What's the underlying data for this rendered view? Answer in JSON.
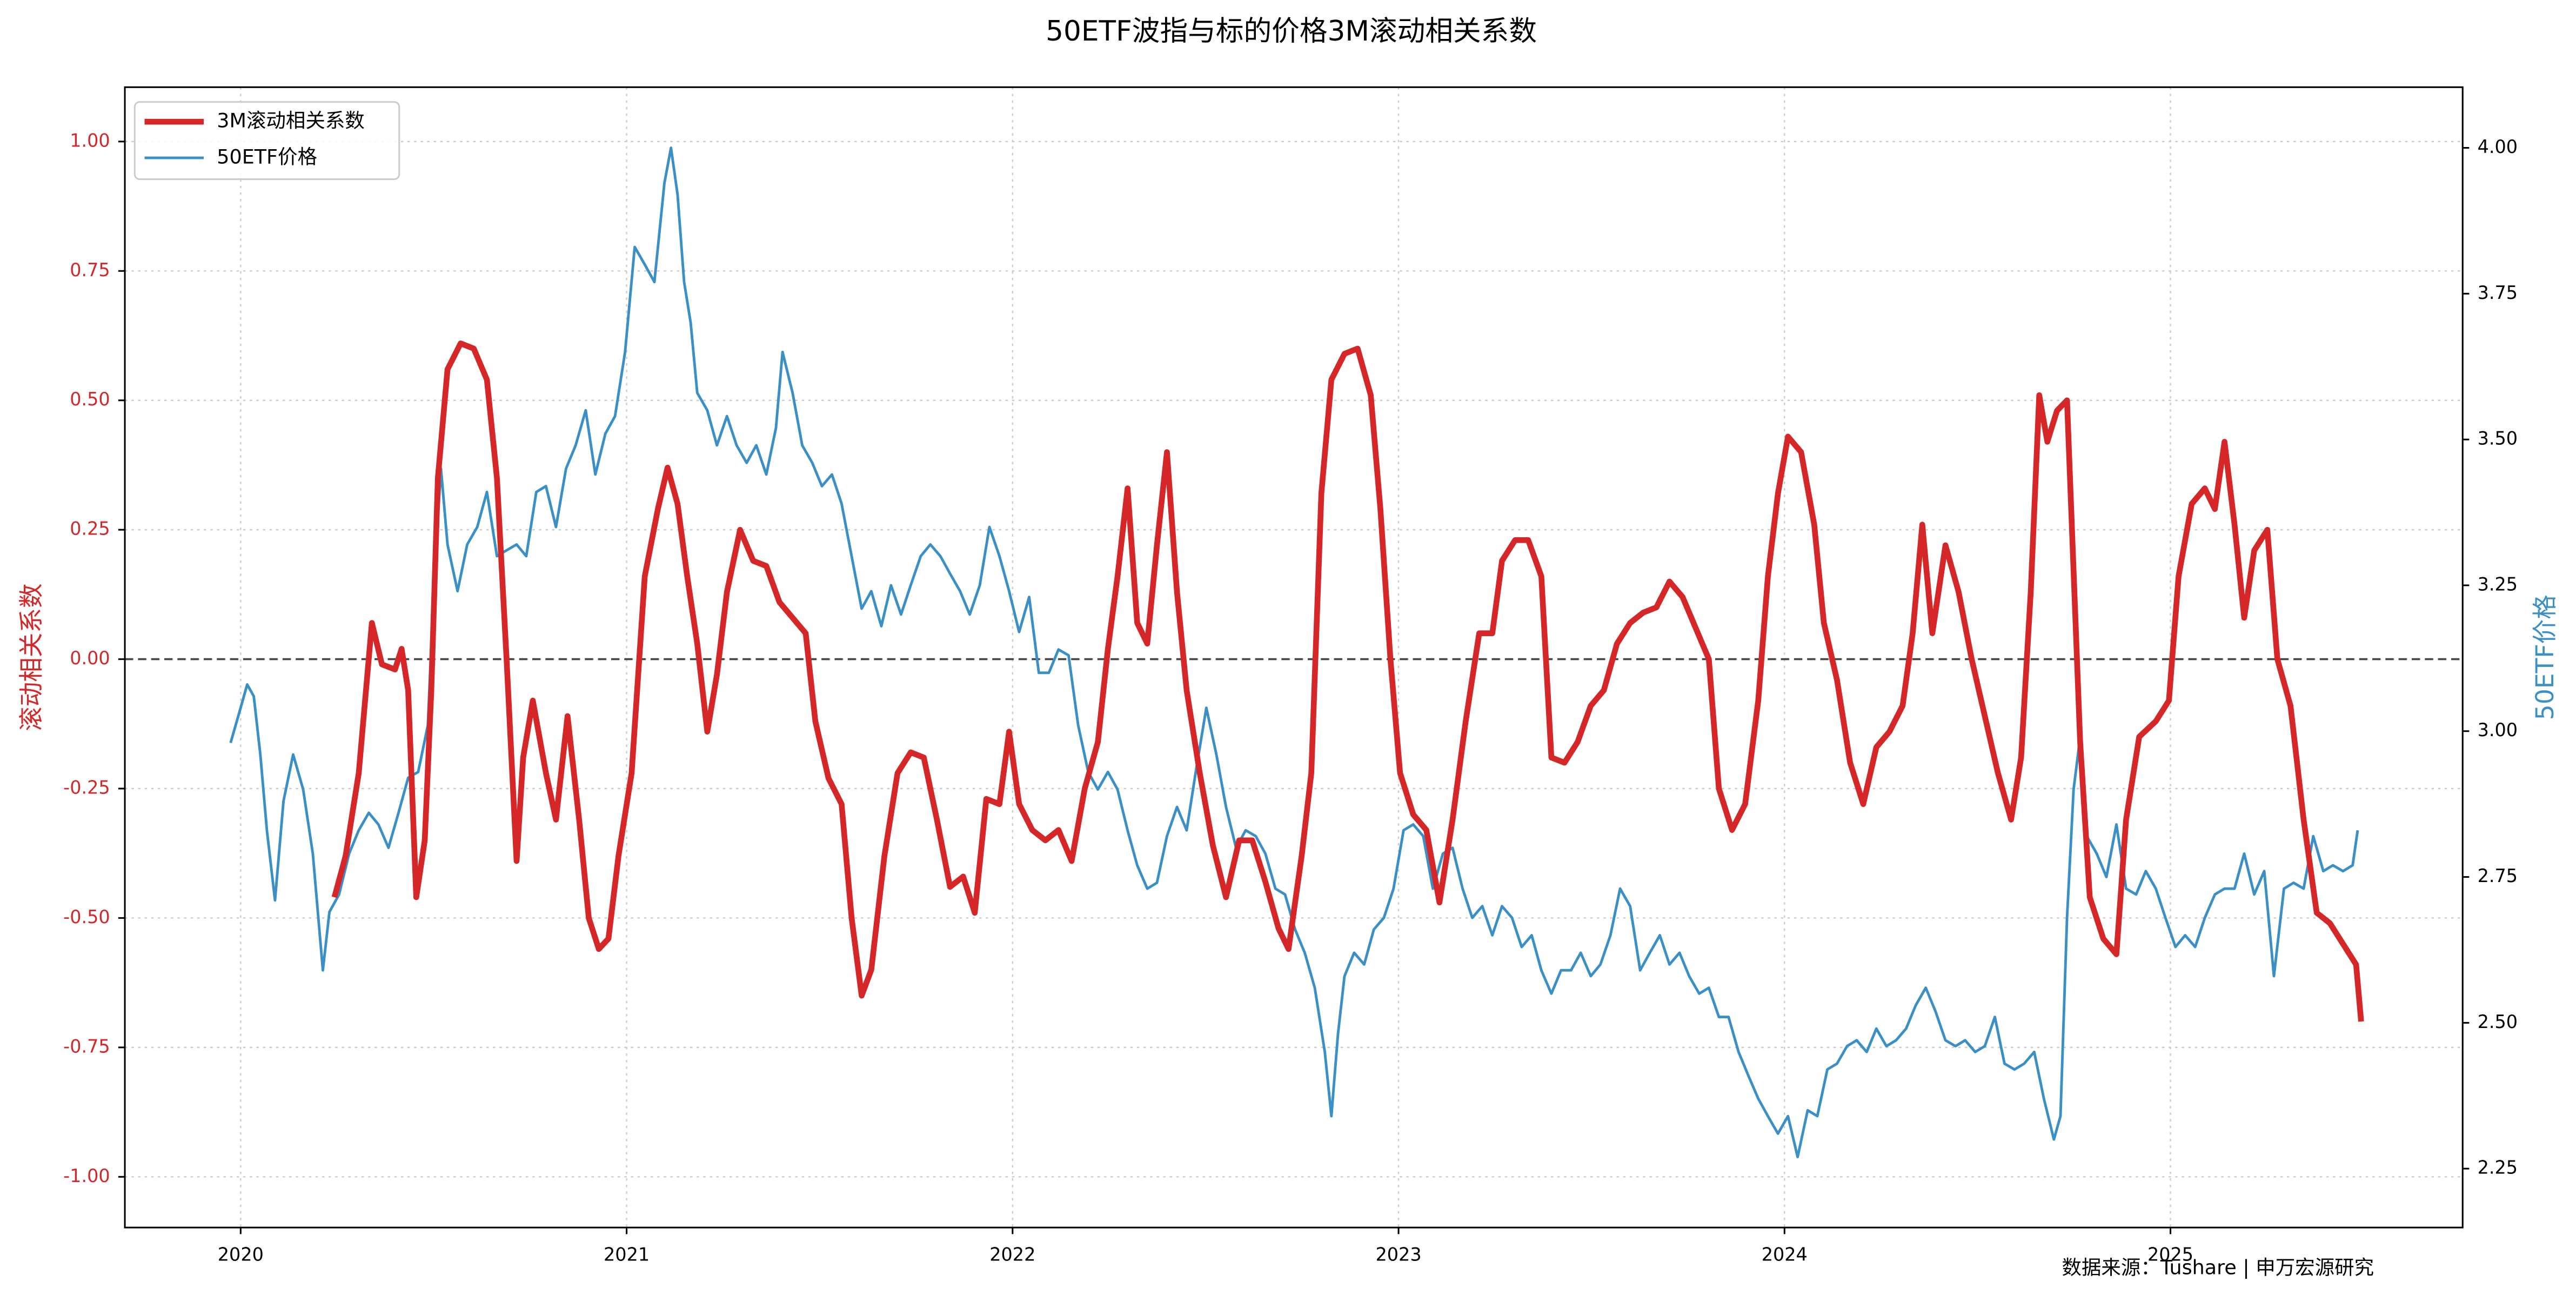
{
  "chart_data": {
    "type": "line",
    "title": "50ETF波指与标的价格3M滚动相关系数",
    "ylabel": "滚动相关系数",
    "y2label": "50ETF价格",
    "annotation": "数据来源：Tushare | 申万宏源研究",
    "xlim": [
      2019.7,
      2025.757
    ],
    "xticks": [
      2020,
      2021,
      2022,
      2023,
      2024,
      2025
    ],
    "ylim": [
      -1.098,
      1.105
    ],
    "yticks": [
      {
        "value": -1,
        "label": "-1.00"
      },
      {
        "value": -0.75,
        "label": "-0.75"
      },
      {
        "value": -0.5,
        "label": "-0.50"
      },
      {
        "value": -0.25,
        "label": "-0.25"
      },
      {
        "value": 0,
        "label": "0.00"
      },
      {
        "value": 0.25,
        "label": "0.25"
      },
      {
        "value": 0.5,
        "label": "0.50"
      },
      {
        "value": 0.75,
        "label": "0.75"
      },
      {
        "value": 1,
        "label": "1.00"
      }
    ],
    "y2lim": [
      2.149,
      4.104
    ],
    "y2ticks": [
      {
        "value": 2.25,
        "label": "2.25"
      },
      {
        "value": 2.5,
        "label": "2.50"
      },
      {
        "value": 2.75,
        "label": "2.75"
      },
      {
        "value": 3,
        "label": "3.00"
      },
      {
        "value": 3.25,
        "label": "3.25"
      },
      {
        "value": 3.5,
        "label": "3.50"
      },
      {
        "value": 3.75,
        "label": "3.75"
      },
      {
        "value": 4,
        "label": "4.00"
      }
    ],
    "hline": 0,
    "grid": true,
    "legend": "upper left",
    "series": [
      {
        "name": "3M滚动相关系数",
        "color": "#d62728",
        "axis": "y",
        "x": [
          2020.243,
          2020.272,
          2020.306,
          2020.34,
          2020.366,
          2020.4,
          2020.417,
          2020.434,
          2020.455,
          2020.477,
          2020.494,
          2020.511,
          2020.536,
          2020.57,
          2020.604,
          2020.638,
          2020.664,
          2020.689,
          2020.715,
          2020.732,
          2020.757,
          2020.791,
          2020.817,
          2020.847,
          2020.877,
          2020.902,
          2020.928,
          2020.953,
          2020.979,
          2021.013,
          2021.047,
          2021.081,
          2021.106,
          2021.132,
          2021.157,
          2021.183,
          2021.209,
          2021.234,
          2021.26,
          2021.294,
          2021.328,
          2021.362,
          2021.396,
          2021.43,
          2021.464,
          2021.489,
          2021.523,
          2021.557,
          2021.583,
          2021.609,
          2021.634,
          2021.668,
          2021.702,
          2021.736,
          2021.77,
          2021.804,
          2021.838,
          2021.872,
          2021.902,
          2021.932,
          2021.966,
          2021.991,
          2022.017,
          2022.051,
          2022.085,
          2022.119,
          2022.153,
          2022.187,
          2022.221,
          2022.247,
          2022.272,
          2022.298,
          2022.323,
          2022.349,
          2022.374,
          2022.4,
          2022.426,
          2022.451,
          2022.485,
          2022.519,
          2022.553,
          2022.587,
          2022.621,
          2022.655,
          2022.689,
          2022.715,
          2022.749,
          2022.774,
          2022.8,
          2022.826,
          2022.86,
          2022.894,
          2022.928,
          2022.953,
          2022.979,
          2023.004,
          2023.038,
          2023.072,
          2023.106,
          2023.14,
          2023.174,
          2023.209,
          2023.243,
          2023.268,
          2023.302,
          2023.336,
          2023.37,
          2023.396,
          2023.43,
          2023.464,
          2023.498,
          2023.532,
          2023.566,
          2023.6,
          2023.634,
          2023.668,
          2023.702,
          2023.736,
          2023.77,
          2023.804,
          2023.83,
          2023.864,
          2023.898,
          2023.932,
          2023.957,
          2023.983,
          2024.009,
          2024.043,
          2024.077,
          2024.102,
          2024.136,
          2024.17,
          2024.204,
          2024.238,
          2024.272,
          2024.306,
          2024.332,
          2024.357,
          2024.383,
          2024.417,
          2024.451,
          2024.485,
          2024.519,
          2024.553,
          2024.587,
          2024.613,
          2024.638,
          2024.66,
          2024.681,
          2024.706,
          2024.732,
          2024.766,
          2024.791,
          2024.826,
          2024.86,
          2024.885,
          2024.919,
          2024.962,
          2024.996,
          2025.021,
          2025.055,
          2025.089,
          2025.115,
          2025.14,
          2025.166,
          2025.191,
          2025.217,
          2025.251,
          2025.277,
          2025.311,
          2025.345,
          2025.379,
          2025.413,
          2025.447,
          2025.481,
          2025.494
        ],
        "values": [
          -0.46,
          -0.38,
          -0.22,
          0.07,
          -0.01,
          -0.02,
          0.02,
          -0.06,
          -0.46,
          -0.35,
          -0.06,
          0.35,
          0.56,
          0.61,
          0.6,
          0.54,
          0.35,
          0,
          -0.39,
          -0.19,
          -0.08,
          -0.22,
          -0.31,
          -0.11,
          -0.31,
          -0.5,
          -0.56,
          -0.54,
          -0.38,
          -0.22,
          0.16,
          0.29,
          0.37,
          0.3,
          0.16,
          0.03,
          -0.14,
          -0.03,
          0.13,
          0.25,
          0.19,
          0.18,
          0.11,
          0.08,
          0.05,
          -0.12,
          -0.23,
          -0.28,
          -0.5,
          -0.65,
          -0.6,
          -0.38,
          -0.22,
          -0.18,
          -0.19,
          -0.31,
          -0.44,
          -0.42,
          -0.49,
          -0.27,
          -0.28,
          -0.14,
          -0.28,
          -0.33,
          -0.35,
          -0.33,
          -0.39,
          -0.25,
          -0.16,
          0.02,
          0.16,
          0.33,
          0.07,
          0.03,
          0.22,
          0.4,
          0.13,
          -0.06,
          -0.22,
          -0.36,
          -0.46,
          -0.35,
          -0.35,
          -0.43,
          -0.52,
          -0.56,
          -0.38,
          -0.22,
          0.32,
          0.54,
          0.59,
          0.6,
          0.51,
          0.29,
          0,
          -0.22,
          -0.3,
          -0.33,
          -0.47,
          -0.31,
          -0.12,
          0.05,
          0.05,
          0.19,
          0.23,
          0.23,
          0.16,
          -0.19,
          -0.2,
          -0.16,
          -0.09,
          -0.06,
          0.03,
          0.07,
          0.09,
          0.1,
          0.15,
          0.12,
          0.06,
          0,
          -0.25,
          -0.33,
          -0.28,
          -0.08,
          0.16,
          0.32,
          0.43,
          0.4,
          0.26,
          0.07,
          -0.04,
          -0.2,
          -0.28,
          -0.17,
          -0.14,
          -0.09,
          0.05,
          0.26,
          0.05,
          0.22,
          0.13,
          0,
          -0.11,
          -0.22,
          -0.31,
          -0.19,
          0.13,
          0.51,
          0.42,
          0.48,
          0.5,
          -0.16,
          -0.46,
          -0.54,
          -0.57,
          -0.31,
          -0.15,
          -0.12,
          -0.08,
          0.16,
          0.3,
          0.33,
          0.29,
          0.42,
          0.26,
          0.08,
          0.21,
          0.25,
          0,
          -0.09,
          -0.31,
          -0.49,
          -0.51,
          -0.55,
          -0.59,
          -0.7
        ]
      },
      {
        "name": "50ETF价格",
        "color": "#3a8fc7",
        "axis": "y2",
        "x": [
          2019.974,
          2020,
          2020.017,
          2020.034,
          2020.051,
          2020.068,
          2020.089,
          2020.111,
          2020.136,
          2020.162,
          2020.187,
          2020.213,
          2020.23,
          2020.255,
          2020.281,
          2020.306,
          2020.332,
          2020.357,
          2020.383,
          2020.409,
          2020.434,
          2020.46,
          2020.485,
          2020.502,
          2020.519,
          2020.536,
          2020.562,
          2020.587,
          2020.613,
          2020.638,
          2020.664,
          2020.689,
          2020.715,
          2020.74,
          2020.766,
          2020.791,
          2020.817,
          2020.843,
          2020.868,
          2020.894,
          2020.919,
          2020.945,
          2020.97,
          2020.996,
          2021.021,
          2021.047,
          2021.072,
          2021.098,
          2021.115,
          2021.132,
          2021.149,
          2021.166,
          2021.183,
          2021.209,
          2021.234,
          2021.26,
          2021.285,
          2021.311,
          2021.336,
          2021.362,
          2021.387,
          2021.404,
          2021.43,
          2021.455,
          2021.481,
          2021.506,
          2021.532,
          2021.557,
          2021.583,
          2021.609,
          2021.634,
          2021.66,
          2021.685,
          2021.711,
          2021.736,
          2021.762,
          2021.787,
          2021.813,
          2021.838,
          2021.864,
          2021.889,
          2021.915,
          2021.94,
          2021.966,
          2021.991,
          2022.017,
          2022.043,
          2022.068,
          2022.094,
          2022.119,
          2022.145,
          2022.17,
          2022.196,
          2022.221,
          2022.247,
          2022.272,
          2022.298,
          2022.323,
          2022.349,
          2022.374,
          2022.4,
          2022.426,
          2022.451,
          2022.477,
          2022.502,
          2022.528,
          2022.553,
          2022.579,
          2022.604,
          2022.63,
          2022.655,
          2022.681,
          2022.706,
          2022.732,
          2022.757,
          2022.783,
          2022.809,
          2022.826,
          2022.843,
          2022.86,
          2022.885,
          2022.911,
          2022.936,
          2022.962,
          2022.987,
          2023.013,
          2023.038,
          2023.064,
          2023.089,
          2023.115,
          2023.14,
          2023.166,
          2023.191,
          2023.217,
          2023.243,
          2023.268,
          2023.294,
          2023.319,
          2023.345,
          2023.37,
          2023.396,
          2023.421,
          2023.447,
          2023.472,
          2023.498,
          2023.523,
          2023.549,
          2023.574,
          2023.6,
          2023.626,
          2023.651,
          2023.677,
          2023.702,
          2023.728,
          2023.753,
          2023.779,
          2023.804,
          2023.83,
          2023.855,
          2023.881,
          2023.906,
          2023.932,
          2023.957,
          2023.983,
          2024.009,
          2024.034,
          2024.06,
          2024.085,
          2024.111,
          2024.136,
          2024.162,
          2024.187,
          2024.213,
          2024.238,
          2024.264,
          2024.289,
          2024.315,
          2024.34,
          2024.366,
          2024.391,
          2024.417,
          2024.443,
          2024.468,
          2024.494,
          2024.519,
          2024.545,
          2024.57,
          2024.596,
          2024.621,
          2024.647,
          2024.672,
          2024.698,
          2024.715,
          2024.732,
          2024.749,
          2024.766,
          2024.783,
          2024.809,
          2024.834,
          2024.86,
          2024.885,
          2024.911,
          2024.936,
          2024.962,
          2024.987,
          2025.013,
          2025.038,
          2025.064,
          2025.089,
          2025.115,
          2025.14,
          2025.166,
          2025.191,
          2025.217,
          2025.243,
          2025.268,
          2025.294,
          2025.319,
          2025.345,
          2025.37,
          2025.396,
          2025.421,
          2025.447,
          2025.472,
          2025.485
        ],
        "values": [
          2.98,
          3.04,
          3.08,
          3.06,
          2.96,
          2.83,
          2.71,
          2.88,
          2.96,
          2.9,
          2.79,
          2.59,
          2.69,
          2.72,
          2.79,
          2.83,
          2.86,
          2.84,
          2.8,
          2.86,
          2.92,
          2.93,
          3.01,
          3.27,
          3.45,
          3.32,
          3.24,
          3.32,
          3.35,
          3.41,
          3.3,
          3.31,
          3.32,
          3.3,
          3.41,
          3.42,
          3.35,
          3.45,
          3.49,
          3.55,
          3.44,
          3.51,
          3.54,
          3.65,
          3.83,
          3.8,
          3.77,
          3.94,
          4,
          3.92,
          3.77,
          3.7,
          3.58,
          3.55,
          3.49,
          3.54,
          3.49,
          3.46,
          3.49,
          3.44,
          3.52,
          3.65,
          3.58,
          3.49,
          3.46,
          3.42,
          3.44,
          3.39,
          3.3,
          3.21,
          3.24,
          3.18,
          3.25,
          3.2,
          3.25,
          3.3,
          3.32,
          3.3,
          3.27,
          3.24,
          3.2,
          3.25,
          3.35,
          3.3,
          3.24,
          3.17,
          3.23,
          3.1,
          3.1,
          3.14,
          3.13,
          3.01,
          2.93,
          2.9,
          2.93,
          2.9,
          2.83,
          2.77,
          2.73,
          2.74,
          2.82,
          2.87,
          2.83,
          2.94,
          3.04,
          2.96,
          2.87,
          2.8,
          2.83,
          2.82,
          2.79,
          2.73,
          2.72,
          2.66,
          2.62,
          2.56,
          2.45,
          2.34,
          2.48,
          2.58,
          2.62,
          2.6,
          2.66,
          2.68,
          2.73,
          2.83,
          2.84,
          2.82,
          2.73,
          2.79,
          2.8,
          2.73,
          2.68,
          2.7,
          2.65,
          2.7,
          2.68,
          2.63,
          2.65,
          2.59,
          2.55,
          2.59,
          2.59,
          2.62,
          2.58,
          2.6,
          2.65,
          2.73,
          2.7,
          2.59,
          2.62,
          2.65,
          2.6,
          2.62,
          2.58,
          2.55,
          2.56,
          2.51,
          2.51,
          2.45,
          2.41,
          2.37,
          2.34,
          2.31,
          2.34,
          2.27,
          2.35,
          2.34,
          2.42,
          2.43,
          2.46,
          2.47,
          2.45,
          2.49,
          2.46,
          2.47,
          2.49,
          2.53,
          2.56,
          2.52,
          2.47,
          2.46,
          2.47,
          2.45,
          2.46,
          2.51,
          2.43,
          2.42,
          2.43,
          2.45,
          2.37,
          2.3,
          2.34,
          2.68,
          2.9,
          2.99,
          2.82,
          2.79,
          2.75,
          2.84,
          2.73,
          2.72,
          2.76,
          2.73,
          2.68,
          2.63,
          2.65,
          2.63,
          2.68,
          2.72,
          2.73,
          2.73,
          2.79,
          2.72,
          2.76,
          2.58,
          2.73,
          2.74,
          2.73,
          2.82,
          2.76,
          2.77,
          2.76,
          2.77,
          2.83
        ]
      }
    ]
  }
}
